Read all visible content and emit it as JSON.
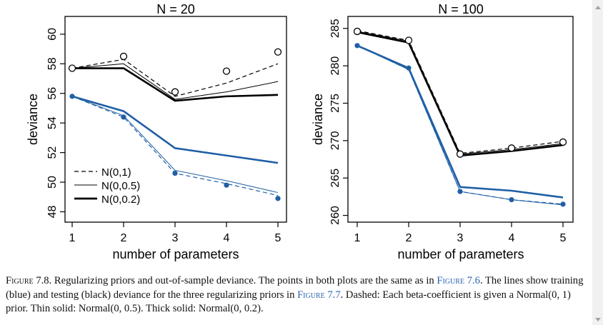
{
  "chart_data": [
    {
      "type": "line",
      "title": "N = 20",
      "xlabel": "number of parameters",
      "ylabel": "deviance",
      "xlim": [
        1,
        5
      ],
      "ylim": [
        47.3,
        61.2
      ],
      "x_ticks": [
        1,
        2,
        3,
        4,
        5
      ],
      "y_ticks": [
        48,
        50,
        52,
        54,
        56,
        58,
        60
      ],
      "legend": {
        "placement": "bottom-left",
        "entries": [
          {
            "label": "N(0,1)",
            "style": "dashed"
          },
          {
            "label": "N(0,0.5)",
            "style": "thin"
          },
          {
            "label": "N(0,0.2)",
            "style": "thick"
          }
        ]
      },
      "points": {
        "test": [
          57.7,
          58.5,
          56.1,
          57.5,
          58.8
        ],
        "train": [
          55.8,
          54.4,
          50.6,
          49.8,
          48.9
        ]
      },
      "series": [
        {
          "group": "test",
          "style": "dashed",
          "values": [
            57.7,
            58.3,
            55.8,
            56.7,
            58.0
          ]
        },
        {
          "group": "test",
          "style": "thin",
          "values": [
            57.7,
            58.0,
            55.6,
            56.1,
            56.8
          ]
        },
        {
          "group": "test",
          "style": "thick",
          "values": [
            57.7,
            57.7,
            55.5,
            55.8,
            55.9
          ]
        },
        {
          "group": "train",
          "style": "dashed",
          "values": [
            55.8,
            54.4,
            50.6,
            49.9,
            49.1
          ]
        },
        {
          "group": "train",
          "style": "thin",
          "values": [
            55.8,
            54.5,
            50.8,
            50.1,
            49.3
          ]
        },
        {
          "group": "train",
          "style": "thick",
          "values": [
            55.8,
            54.8,
            52.3,
            51.8,
            51.3
          ]
        }
      ]
    },
    {
      "type": "line",
      "title": "N = 100",
      "xlabel": "number of parameters",
      "ylabel": "deviance",
      "xlim": [
        1,
        5
      ],
      "ylim": [
        259.1,
        286.6
      ],
      "x_ticks": [
        1,
        2,
        3,
        4,
        5
      ],
      "y_ticks": [
        260,
        265,
        270,
        275,
        280,
        285
      ],
      "points": {
        "test": [
          284.6,
          283.4,
          268.2,
          269.0,
          269.8
        ],
        "train": [
          282.7,
          279.7,
          263.2,
          262.1,
          261.5
        ]
      },
      "series": [
        {
          "group": "test",
          "style": "dashed",
          "values": [
            284.7,
            283.4,
            268.3,
            269.0,
            269.9
          ]
        },
        {
          "group": "test",
          "style": "thin",
          "values": [
            284.6,
            283.3,
            268.2,
            268.8,
            269.6
          ]
        },
        {
          "group": "test",
          "style": "thick",
          "values": [
            284.5,
            283.1,
            268.0,
            268.6,
            269.4
          ]
        },
        {
          "group": "train",
          "style": "dashed",
          "values": [
            282.7,
            279.5,
            263.2,
            262.1,
            261.5
          ]
        },
        {
          "group": "train",
          "style": "thin",
          "values": [
            282.7,
            279.5,
            263.2,
            262.1,
            261.4
          ]
        },
        {
          "group": "train",
          "style": "thick",
          "values": [
            282.7,
            279.7,
            263.8,
            263.3,
            262.4
          ]
        }
      ]
    }
  ],
  "colors": {
    "train": "#1f5fa5",
    "test": "#000000",
    "link": "#2b63b0"
  },
  "caption": {
    "label": "Figure 7.8.",
    "text1": " Regularizing priors and out-of-sample deviance. The points in both plots are the same as in ",
    "link1": "Figure 7.6",
    "text2": ". The lines show training (blue) and testing (black) deviance for the three regularizing priors in ",
    "link2": "Figure 7.7",
    "text3": ". Dashed: Each beta-coefficient is given a Normal(0, 1) prior. Thin solid: Normal(0, 0.5). Thick solid: Normal(0, 0.2)."
  }
}
